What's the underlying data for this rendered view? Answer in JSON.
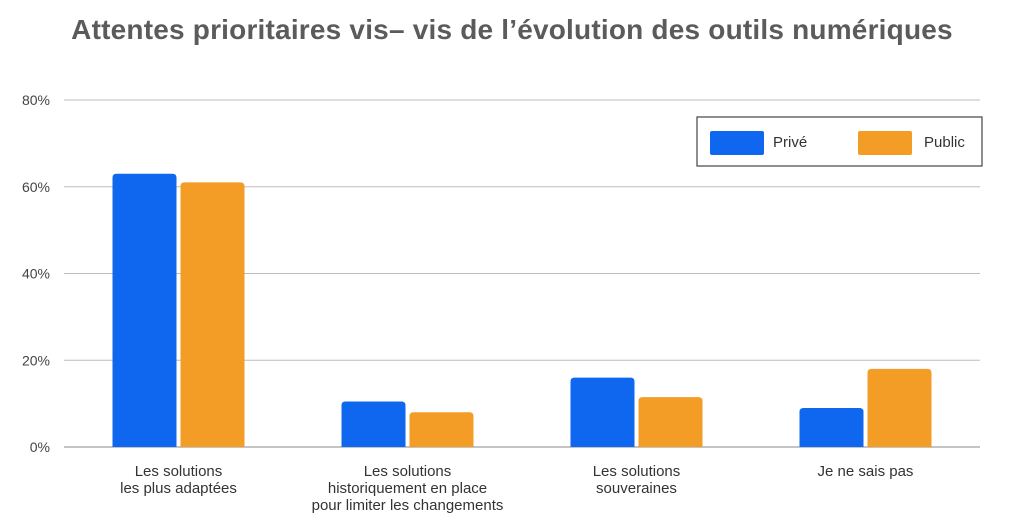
{
  "chart_data": {
    "type": "bar",
    "title": "Attentes prioritaires vis– vis de l’évolution des outils numériques",
    "categories": [
      [
        "Les solutions",
        "les plus adaptées"
      ],
      [
        "Les solutions",
        "historiquement en place",
        "pour limiter les changements"
      ],
      [
        "Les solutions",
        "souveraines"
      ],
      [
        "Je ne sais pas"
      ]
    ],
    "series": [
      {
        "name": "Privé",
        "color": "#0f67f0",
        "values": [
          63,
          10.5,
          16,
          9
        ]
      },
      {
        "name": "Public",
        "color": "#f39c26",
        "values": [
          61,
          8,
          11.5,
          18
        ]
      }
    ],
    "yticks": [
      "0%",
      "20%",
      "40%",
      "60%",
      "80%"
    ],
    "ylim": [
      0,
      80
    ],
    "grid": true,
    "legend_position": "top-right"
  }
}
